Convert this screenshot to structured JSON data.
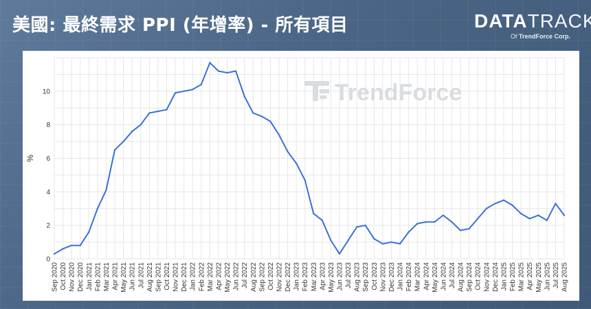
{
  "header": {
    "title": "美國: 最終需求 PPI (年增率) - 所有項目"
  },
  "logo": {
    "main_bold": "DATA",
    "main_light": "TRACK",
    "sub_prefix": "Of",
    "sub_brand": "TrendForce Corp."
  },
  "watermark": "TrendForce",
  "colors": {
    "line": "#3a6fd8",
    "grid": "#e6e6e6",
    "panel": "#ffffff"
  },
  "chart_data": {
    "type": "line",
    "title": "美國: 最終需求 PPI (年增率) - 所有項目",
    "ylabel": "%",
    "xlabel": "",
    "ylim": [
      0,
      12
    ],
    "yticks": [
      0,
      2,
      4,
      6,
      8,
      10
    ],
    "grid": true,
    "categories": [
      "Sep 2020",
      "Oct 2020",
      "Nov 2020",
      "Dec 2020",
      "Jan 2021",
      "Feb 2021",
      "Mar 2021",
      "Apr 2021",
      "May 2021",
      "Jun 2021",
      "Jul 2021",
      "Aug 2021",
      "Sep 2021",
      "Oct 2021",
      "Nov 2021",
      "Dec 2021",
      "Jan 2022",
      "Feb 2022",
      "Mar 2022",
      "Apr 2022",
      "May 2022",
      "Jun 2022",
      "Jul 2022",
      "Aug 2022",
      "Sep 2022",
      "Oct 2022",
      "Nov 2022",
      "Dec 2022",
      "Jan 2023",
      "Feb 2023",
      "Mar 2023",
      "Apr 2023",
      "May 2023",
      "Jun 2023",
      "Jul 2023",
      "Aug 2023",
      "Sep 2023",
      "Oct 2023",
      "Nov 2023",
      "Dec 2023",
      "Jan 2024",
      "Feb 2024",
      "Mar 2024",
      "Apr 2024",
      "May 2024",
      "Jun 2024",
      "Jul 2024",
      "Aug 2024",
      "Sep 2024",
      "Oct 2024",
      "Nov 2024",
      "Dec 2024",
      "Jan 2025",
      "Feb 2025",
      "Mar 2025",
      "Apr 2025",
      "May 2025",
      "Jun 2025",
      "Jul 2025",
      "Aug 2025"
    ],
    "series": [
      {
        "values": [
          0.3,
          0.6,
          0.8,
          0.8,
          1.6,
          3.0,
          4.1,
          6.5,
          7.0,
          7.6,
          8.0,
          8.7,
          8.8,
          8.9,
          9.9,
          10.0,
          10.1,
          10.4,
          11.7,
          11.2,
          11.1,
          11.2,
          9.7,
          8.7,
          8.5,
          8.2,
          7.4,
          6.4,
          5.7,
          4.7,
          2.7,
          2.3,
          1.1,
          0.3,
          1.1,
          1.9,
          2.0,
          1.2,
          0.9,
          1.0,
          0.9,
          1.6,
          2.1,
          2.2,
          2.2,
          2.6,
          2.2,
          1.7,
          1.8,
          2.4,
          3.0,
          3.3,
          3.5,
          3.2,
          2.7,
          2.4,
          2.6,
          2.3,
          3.3,
          2.6
        ]
      }
    ]
  }
}
